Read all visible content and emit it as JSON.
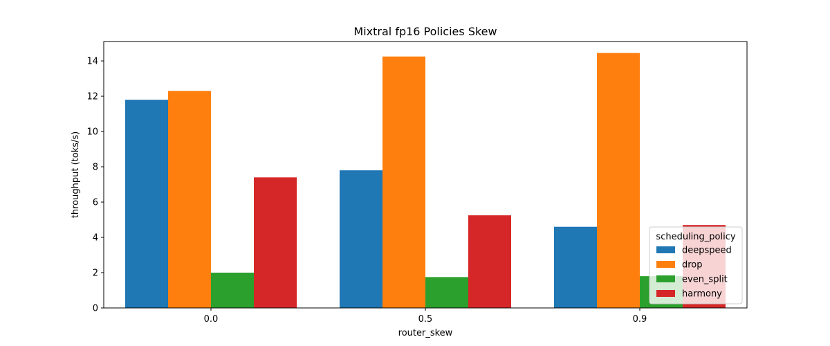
{
  "chart_data": {
    "type": "bar",
    "title": "Mixtral fp16 Policies Skew",
    "xlabel": "router_skew",
    "ylabel": "throughput (toks/s)",
    "categories": [
      "0.0",
      "0.5",
      "0.9"
    ],
    "ylim": [
      0,
      15.1
    ],
    "yticks": [
      0,
      2,
      4,
      6,
      8,
      10,
      12,
      14
    ],
    "grid": false,
    "legend": {
      "title": "scheduling_policy",
      "placement": "lower-right"
    },
    "series": [
      {
        "name": "deepspeed",
        "color": "#1f77b4",
        "values": [
          11.8,
          7.8,
          4.6
        ]
      },
      {
        "name": "drop",
        "color": "#ff7f0e",
        "values": [
          12.3,
          14.25,
          14.45
        ]
      },
      {
        "name": "even_split",
        "color": "#2ca02c",
        "values": [
          2.0,
          1.75,
          1.8
        ]
      },
      {
        "name": "harmony",
        "color": "#d62728",
        "values": [
          7.4,
          5.25,
          4.7
        ]
      }
    ]
  }
}
